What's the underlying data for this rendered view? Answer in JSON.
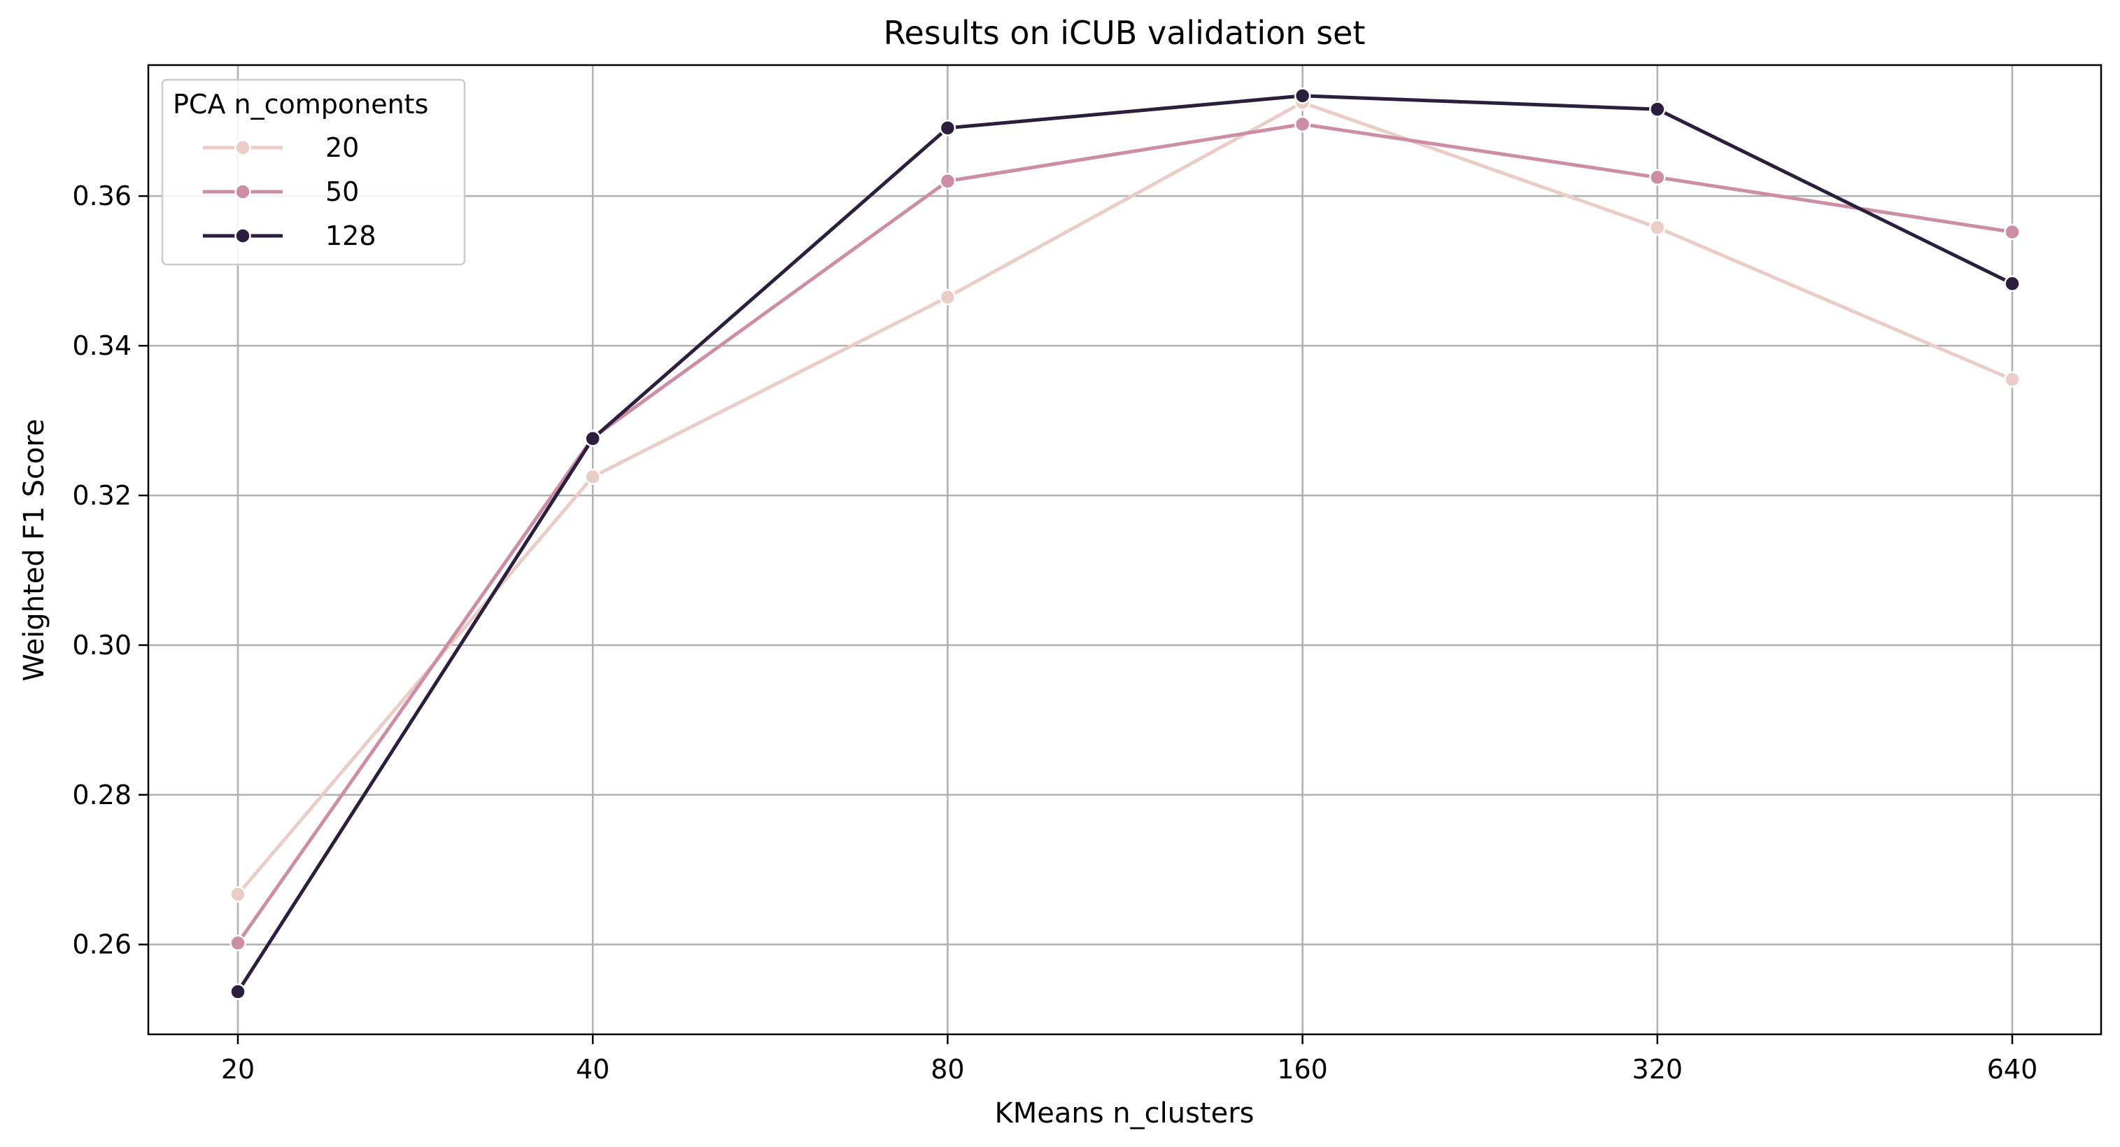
{
  "chart_data": {
    "type": "line",
    "title": "Results on iCUB validation set",
    "xlabel": "KMeans n_clusters",
    "ylabel": "Weighted F1 Score",
    "categories": [
      "20",
      "40",
      "80",
      "160",
      "320",
      "640"
    ],
    "ylim": [
      0.248,
      0.3775
    ],
    "yticks": [
      0.26,
      0.28,
      0.3,
      0.32,
      0.34,
      0.36
    ],
    "ytick_labels": [
      "0.26",
      "0.28",
      "0.30",
      "0.32",
      "0.34",
      "0.36"
    ],
    "grid": true,
    "legend": {
      "title": "PCA n_components",
      "placement": "top-left"
    },
    "series": [
      {
        "name": "20",
        "color": "#ebcdc7",
        "values": [
          0.2667,
          0.3225,
          0.3465,
          0.3725,
          0.3558,
          0.3355
        ]
      },
      {
        "name": "50",
        "color": "#cc8da5",
        "values": [
          0.2602,
          0.3277,
          0.362,
          0.3696,
          0.3625,
          0.3552
        ]
      },
      {
        "name": "128",
        "color": "#2c1e3d",
        "values": [
          0.2537,
          0.3276,
          0.3691,
          0.3734,
          0.3716,
          0.3483
        ]
      }
    ]
  }
}
